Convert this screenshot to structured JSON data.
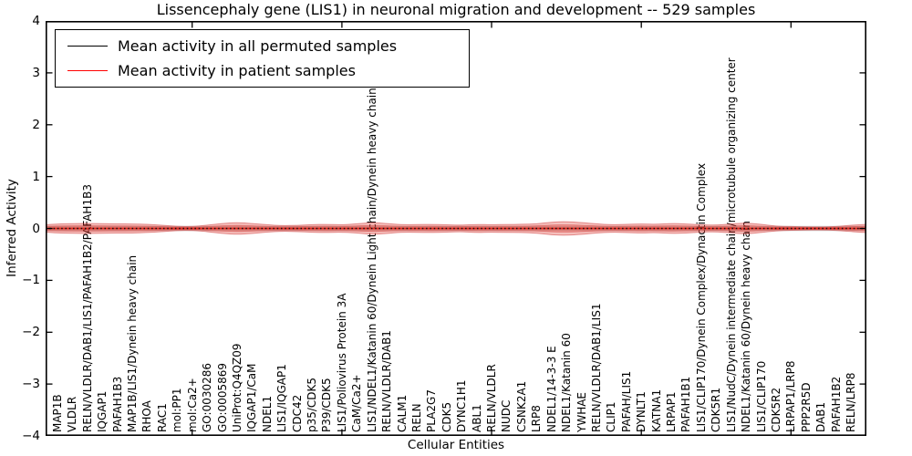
{
  "title": "Lissencephaly gene (LIS1) in neuronal migration and development -- 529 samples",
  "axes": {
    "xlabel": "Cellular Entities",
    "ylabel": "Inferred Activity",
    "yticks": [
      "4",
      "3",
      "2",
      "1",
      "0",
      "−1",
      "−2",
      "−3",
      "−4"
    ],
    "ylim": [
      -4,
      4
    ]
  },
  "legend": {
    "items": [
      {
        "label": "Mean activity in all permuted samples",
        "color": "#000000"
      },
      {
        "label": "Mean activity in patient samples",
        "color": "#ff0000"
      }
    ],
    "position": "upper left"
  },
  "colors": {
    "permuted_line": "#111111",
    "patient_line": "#e8281e",
    "patient_band_fill": "#dd2d26",
    "patient_band_edge": "#c81e1e",
    "permuted_band_fill": "#787878",
    "axis": "#000000"
  },
  "chart_data": {
    "type": "line",
    "title": "Lissencephaly gene (LIS1) in neuronal migration and development -- 529 samples",
    "xlabel": "Cellular Entities",
    "ylabel": "Inferred Activity",
    "ylim": [
      -4,
      4
    ],
    "grid": false,
    "legend_position": "upper left",
    "categories": [
      "MAP1B",
      "VLDLR",
      "RELN/VLDLR/DAB1/LIS1/PAFAH1B2/PAFAH1B3",
      "IQGAP1",
      "PAFAH1B3",
      "MAP1B/LIS1/Dynein heavy chain",
      "RHOA",
      "RAC1",
      "mol:PP1",
      "mol:Ca2+",
      "GO:0030286",
      "GO:0005869",
      "UniProt:Q4QZ09",
      "IQGAP1/CaM",
      "NDEL1",
      "LIS1/IQGAP1",
      "CDC42",
      "p35/CDK5",
      "P39/CDK5",
      "LIS1/Poliovirus Protein 3A",
      "CaM/Ca2+",
      "LIS1/NDEL1/Katanin 60/Dynein Light chain/Dynein heavy chain",
      "RELN/VLDLR/DAB1",
      "CALM1",
      "RELN",
      "PLA2G7",
      "CDK5",
      "DYNC1H1",
      "ABL1",
      "RELN/VLDLR",
      "NUDC",
      "CSNK2A1",
      "LRP8",
      "NDEL1/14-3-3 E",
      "NDEL1/Katanin 60",
      "YWHAE",
      "RELN/VLDLR/DAB1/LIS1",
      "CLIP1",
      "PAFAH/LIS1",
      "DYNLT1",
      "KATNA1",
      "LRPAP1",
      "PAFAH1B1",
      "LIS1/CLIP170/Dynein Complex/Dynactin Complex",
      "CDK5R1",
      "LIS1/NudC/Dynein intermediate chain/microtubule organizing center",
      "NDEL1/Katanin 60/Dynein heavy chain",
      "LIS1/CLIP170",
      "CDK5R2",
      "LRPAP1/LRP8",
      "PPP2R5D",
      "DAB1",
      "PAFAH1B2",
      "RELN/LRP8"
    ],
    "series": [
      {
        "name": "Mean activity in all permuted samples",
        "color": "#000000",
        "style": "dotted",
        "values": [
          0,
          0,
          0,
          0,
          0,
          0,
          0,
          0,
          0,
          0,
          0,
          0,
          0,
          0,
          0,
          0,
          0,
          0,
          0,
          0,
          0,
          0,
          0,
          0,
          0,
          0,
          0,
          0,
          0,
          0,
          0,
          0,
          0,
          0,
          0,
          0,
          0,
          0,
          0,
          0,
          0,
          0,
          0,
          0,
          0,
          0,
          0,
          0,
          0,
          0,
          0,
          0,
          0,
          0
        ]
      },
      {
        "name": "Mean activity in patient samples",
        "color": "#ff0000",
        "style": "solid",
        "values": [
          0,
          0,
          0,
          0,
          0,
          0,
          0,
          0,
          0,
          0,
          0,
          0,
          0,
          0,
          0,
          0,
          0,
          0,
          0,
          0,
          0,
          0,
          0,
          0,
          0,
          0,
          0,
          0,
          0,
          0,
          0,
          0,
          0,
          0,
          0,
          0,
          0,
          0,
          0,
          0,
          0,
          0,
          0,
          0,
          0,
          0,
          0,
          0,
          0,
          0,
          0,
          0,
          0,
          0
        ]
      }
    ],
    "patient_band_halfwidth": [
      0.088,
      0.093,
      0.097,
      0.093,
      0.088,
      0.088,
      0.079,
      0.062,
      0.039,
      0.035,
      0.062,
      0.097,
      0.114,
      0.097,
      0.07,
      0.053,
      0.058,
      0.074,
      0.079,
      0.07,
      0.088,
      0.114,
      0.097,
      0.07,
      0.074,
      0.079,
      0.07,
      0.062,
      0.079,
      0.07,
      0.076,
      0.079,
      0.088,
      0.123,
      0.132,
      0.114,
      0.088,
      0.07,
      0.079,
      0.088,
      0.079,
      0.097,
      0.088,
      0.07,
      0.062,
      0.088,
      0.105,
      0.079,
      0.044,
      0.035,
      0.032,
      0.026,
      0.035,
      0.062
    ],
    "band_edge_halfwidth": [
      0.07,
      0.079
    ],
    "permuted_band_halfwidth": 0.049
  }
}
